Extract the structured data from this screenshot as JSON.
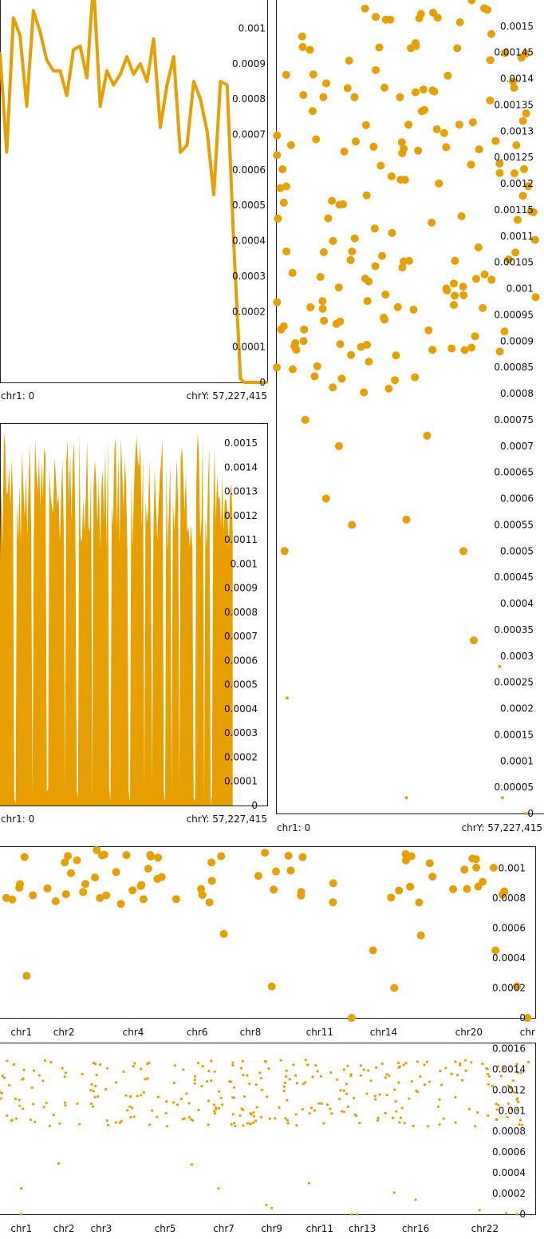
{
  "colors": {
    "accent": "#e8a000",
    "axis": "#222222",
    "text": "#111111",
    "background": "#ffffff"
  },
  "chart_data": [
    {
      "id": "line-top-left",
      "type": "line",
      "x_start_label": "chr1: 0",
      "x_end_label": "chrY: 57,227,415",
      "ylim": [
        0,
        0.00108
      ],
      "y_ticks": [
        "0.001",
        "0.0009",
        "0.0008",
        "0.0007",
        "0.0006",
        "0.0005",
        "0.0004",
        "0.0003",
        "0.0002",
        "0.0001",
        "0"
      ],
      "y_tick_values": [
        0.001,
        0.0009,
        0.0008,
        0.0007,
        0.0006,
        0.0005,
        0.0004,
        0.0003,
        0.0002,
        0.0001,
        0
      ],
      "x": [
        0,
        0.025,
        0.05,
        0.075,
        0.1,
        0.125,
        0.15,
        0.175,
        0.2,
        0.225,
        0.25,
        0.275,
        0.3,
        0.325,
        0.35,
        0.375,
        0.4,
        0.425,
        0.45,
        0.475,
        0.5,
        0.525,
        0.55,
        0.575,
        0.6,
        0.625,
        0.65,
        0.675,
        0.7,
        0.725,
        0.75,
        0.775,
        0.8,
        0.825,
        0.85,
        0.875,
        0.9,
        0.915,
        0.93,
        0.95,
        1.0
      ],
      "values": [
        0.00093,
        0.00065,
        0.00103,
        0.00098,
        0.00078,
        0.00105,
        0.00099,
        0.00091,
        0.00088,
        0.00088,
        0.00081,
        0.00094,
        0.00095,
        0.00086,
        0.00113,
        0.00078,
        0.00088,
        0.00084,
        0.00087,
        0.00092,
        0.00087,
        0.0009,
        0.00085,
        0.00097,
        0.00072,
        0.00084,
        0.00092,
        0.00065,
        0.00067,
        0.00085,
        0.0008,
        0.00071,
        0.00053,
        0.00085,
        0.00084,
        0.00039,
        1e-05,
        0,
        0,
        0,
        0
      ]
    },
    {
      "id": "area-middle-left",
      "type": "area",
      "x_start_label": "chr1: 0",
      "x_end_label": "chrY: 57,227,415",
      "ylim": [
        0,
        0.00158
      ],
      "y_ticks": [
        "0.0015",
        "0.0014",
        "0.0013",
        "0.0012",
        "0.0011",
        "0.001",
        "0.0009",
        "0.0008",
        "0.0007",
        "0.0006",
        "0.0005",
        "0.0004",
        "0.0003",
        "0.0002",
        "0.0001",
        "0"
      ],
      "y_tick_values": [
        0.0015,
        0.0014,
        0.0013,
        0.0012,
        0.0011,
        0.001,
        0.0009,
        0.0008,
        0.0007,
        0.0006,
        0.0005,
        0.0004,
        0.0003,
        0.0002,
        0.0001,
        0
      ],
      "n_points": 180,
      "seed": 7,
      "base_range": [
        0.00105,
        0.0015
      ],
      "dips": [
        0.06,
        0.13,
        0.19,
        0.26,
        0.31,
        0.37,
        0.44,
        0.52,
        0.58,
        0.61,
        0.66,
        0.69,
        0.72,
        0.78,
        0.82,
        0.85
      ],
      "peak_max": 0.00155,
      "extent": 0.935
    },
    {
      "id": "scatter-right",
      "type": "scatter",
      "x_start_label": "chr1: 0",
      "x_end_label": "chrY: 57,227,415",
      "ylim": [
        0,
        0.00155
      ],
      "y_ticks": [
        "0.0015",
        "0.00145",
        "0.0014",
        "0.00135",
        "0.0013",
        "0.00125",
        "0.0012",
        "0.00115",
        "0.0011",
        "0.00105",
        "0.001",
        "0.00095",
        "0.0009",
        "0.00085",
        "0.0008",
        "0.00075",
        "0.0007",
        "0.00065",
        "0.0006",
        "0.00055",
        "0.0005",
        "0.00045",
        "0.0004",
        "0.00035",
        "0.0003",
        "0.00025",
        "0.0002",
        "0.00015",
        "0.0001",
        "0.00005",
        "0"
      ],
      "y_tick_values": [
        0.0015,
        0.00145,
        0.0014,
        0.00135,
        0.0013,
        0.00125,
        0.0012,
        0.00115,
        0.0011,
        0.00105,
        0.001,
        0.00095,
        0.0009,
        0.00085,
        0.0008,
        0.00075,
        0.0007,
        0.00065,
        0.0006,
        0.00055,
        0.0005,
        0.00045,
        0.0004,
        0.00035,
        0.0003,
        0.00025,
        0.0002,
        0.00015,
        0.0001,
        5e-05,
        0
      ],
      "n_points": 175,
      "seed": 21,
      "value_range": [
        0.0008,
        0.00155
      ],
      "outliers": [
        [
          0.0,
          0.00085
        ],
        [
          0.03,
          0.0005
        ],
        [
          0.04,
          0.00022
        ],
        [
          0.11,
          0.00075
        ],
        [
          0.19,
          0.0006
        ],
        [
          0.24,
          0.0007
        ],
        [
          0.29,
          0.00055
        ],
        [
          0.5,
          3e-05
        ],
        [
          0.5,
          0.00056
        ],
        [
          0.58,
          0.00072
        ],
        [
          0.72,
          0.0005
        ],
        [
          0.76,
          0.00033
        ],
        [
          0.86,
          0.00028
        ],
        [
          0.87,
          3e-05
        ],
        [
          0.96,
          0.0
        ]
      ]
    },
    {
      "id": "scatter-bottom-upper",
      "type": "scatter",
      "x_tick_labels": [
        "chr1",
        "chr2",
        "chr4",
        "chr6",
        "chr8",
        "chr11",
        "chr14",
        "chr20",
        "chr"
      ],
      "x_tick_positions": [
        0.04,
        0.12,
        0.25,
        0.37,
        0.47,
        0.6,
        0.72,
        0.88,
        0.99
      ],
      "ylim": [
        0,
        0.00114
      ],
      "y_ticks": [
        "0.001",
        "0.0008",
        "0.0006",
        "0.0004",
        "0.0002",
        "0"
      ],
      "y_tick_values": [
        0.001,
        0.0008,
        0.0006,
        0.0004,
        0.0002,
        0
      ],
      "n_points": 72,
      "seed": 33,
      "value_range": [
        0.00075,
        0.00112
      ],
      "outliers": [
        [
          0.05,
          0.00028
        ],
        [
          0.51,
          0.00021
        ],
        [
          0.42,
          0.00056
        ],
        [
          0.66,
          0.0
        ],
        [
          0.7,
          0.00045
        ],
        [
          0.74,
          0.0002
        ],
        [
          0.79,
          0.00055
        ],
        [
          0.93,
          0.00045
        ],
        [
          0.97,
          0.00021
        ],
        [
          0.99,
          0.0
        ]
      ]
    },
    {
      "id": "scatter-bottom-lower",
      "type": "scatter",
      "x_tick_labels": [
        "chr1",
        "chr2",
        "chr3",
        "chr5",
        "chr7",
        "chr9",
        "chr11",
        "chr13",
        "chr16",
        "chr22"
      ],
      "x_tick_positions": [
        0.04,
        0.12,
        0.19,
        0.31,
        0.42,
        0.51,
        0.6,
        0.68,
        0.78,
        0.91
      ],
      "ylim": [
        0,
        0.00165
      ],
      "y_ticks": [
        "0.0016",
        "0.0014",
        "0.0012",
        "0.001",
        "0.0008",
        "0.0006",
        "0.0004",
        "0.0002",
        "0"
      ],
      "y_tick_values": [
        0.0016,
        0.0014,
        0.0012,
        0.001,
        0.0008,
        0.0006,
        0.0004,
        0.0002,
        0
      ],
      "n_points": 320,
      "seed": 57,
      "value_range": [
        0.00085,
        0.0015
      ],
      "outliers": [
        [
          0.04,
          0.00025
        ],
        [
          0.04,
          0.0
        ],
        [
          0.11,
          0.00049
        ],
        [
          0.36,
          0.00048
        ],
        [
          0.41,
          0.00025
        ],
        [
          0.5,
          9e-05
        ],
        [
          0.51,
          6e-05
        ],
        [
          0.58,
          0.0003
        ],
        [
          0.66,
          0.0
        ],
        [
          0.67,
          0.0
        ],
        [
          0.74,
          0.00021
        ],
        [
          0.78,
          0.00014
        ],
        [
          0.9,
          4e-05
        ],
        [
          0.95,
          1e-05
        ],
        [
          0.97,
          0.0
        ]
      ]
    }
  ]
}
